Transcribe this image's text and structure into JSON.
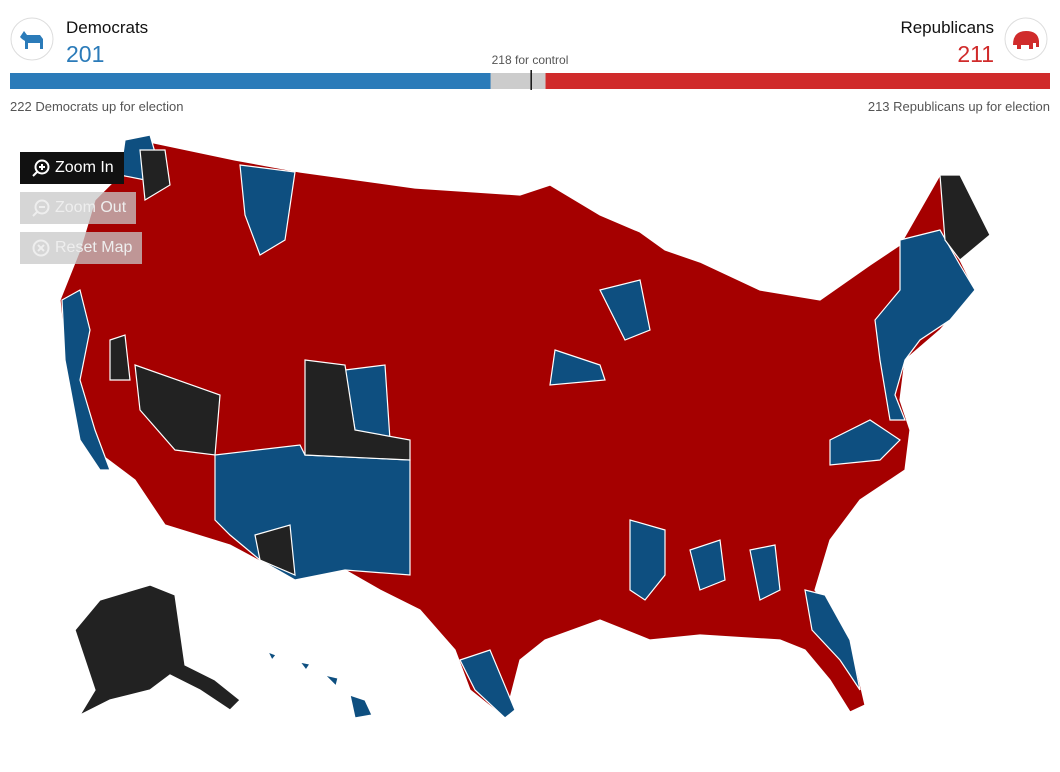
{
  "header": {
    "democrats": {
      "name": "Democrats",
      "seats": 201,
      "up_count": 222,
      "up_label": "Democrats up for election"
    },
    "republicans": {
      "name": "Republicans",
      "seats": 211,
      "up_count": 213,
      "up_label": "Republicans up for election"
    },
    "control": {
      "seats": 218,
      "label": "for control"
    }
  },
  "controls": {
    "zoom_in": "Zoom In",
    "zoom_out": "Zoom Out",
    "reset": "Reset Map"
  }
}
